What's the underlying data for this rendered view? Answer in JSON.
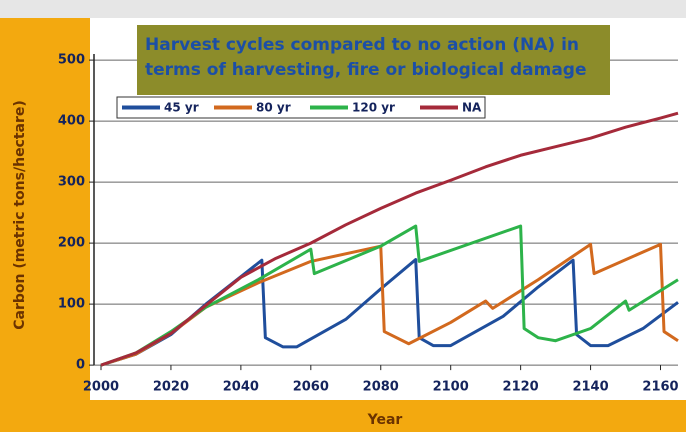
{
  "chart_data": {
    "type": "line",
    "title_lines": [
      "Harvest cycles compared to no action (NA) in",
      "terms of harvesting, fire or biological damage"
    ],
    "x_label": "Year",
    "y_label": "Carbon (metric tons/hectare)",
    "xlim": [
      1998,
      2165
    ],
    "ylim": [
      -8,
      510
    ],
    "xticks": [
      2000,
      2020,
      2040,
      2060,
      2080,
      2100,
      2120,
      2140,
      2160
    ],
    "yticks": [
      0,
      100,
      200,
      300,
      400,
      500
    ],
    "grid": true,
    "series": [
      {
        "name": "45 yr",
        "color": "#1f4e9c",
        "x": [
          2000,
          2010,
          2020,
          2030,
          2040,
          2046,
          2047,
          2052,
          2056,
          2070,
          2080,
          2090,
          2091,
          2095,
          2100,
          2115,
          2125,
          2135,
          2136,
          2140,
          2145,
          2155,
          2165
        ],
        "values": [
          0,
          18,
          50,
          100,
          145,
          172,
          45,
          30,
          30,
          75,
          125,
          173,
          45,
          32,
          32,
          80,
          128,
          172,
          50,
          32,
          32,
          60,
          103
        ]
      },
      {
        "name": "80 yr",
        "color": "#d2691e",
        "x": [
          2000,
          2010,
          2020,
          2030,
          2045,
          2060,
          2080,
          2081,
          2088,
          2100,
          2110,
          2112,
          2125,
          2140,
          2141,
          2160,
          2161,
          2165
        ],
        "values": [
          0,
          18,
          52,
          95,
          135,
          170,
          195,
          55,
          35,
          70,
          105,
          93,
          140,
          198,
          150,
          198,
          55,
          40
        ]
      },
      {
        "name": "120 yr",
        "color": "#2db34a",
        "x": [
          2000,
          2010,
          2020,
          2030,
          2045,
          2060,
          2061,
          2080,
          2090,
          2091,
          2120,
          2121,
          2125,
          2130,
          2140,
          2150,
          2151,
          2165
        ],
        "values": [
          0,
          20,
          55,
          95,
          140,
          190,
          150,
          195,
          228,
          170,
          228,
          60,
          45,
          40,
          60,
          105,
          90,
          140
        ]
      },
      {
        "name": "NA",
        "color": "#a52a3a",
        "x": [
          2000,
          2010,
          2020,
          2030,
          2040,
          2050,
          2060,
          2070,
          2080,
          2090,
          2100,
          2110,
          2120,
          2130,
          2140,
          2150,
          2160,
          2165
        ],
        "values": [
          0,
          20,
          52,
          98,
          144,
          175,
          200,
          230,
          257,
          282,
          303,
          325,
          344,
          358,
          372,
          390,
          405,
          413
        ]
      }
    ]
  }
}
